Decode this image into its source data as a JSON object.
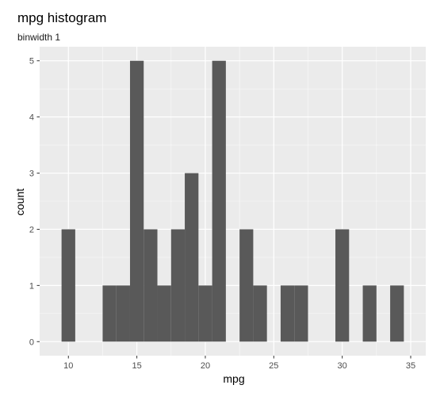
{
  "chart_data": {
    "type": "bar",
    "title": "mpg histogram",
    "subtitle": "binwidth 1",
    "xlabel": "mpg",
    "ylabel": "count",
    "binwidth": 1,
    "bins": [
      {
        "x": 10,
        "count": 2
      },
      {
        "x": 13,
        "count": 1
      },
      {
        "x": 14,
        "count": 1
      },
      {
        "x": 15,
        "count": 5
      },
      {
        "x": 16,
        "count": 2
      },
      {
        "x": 17,
        "count": 1
      },
      {
        "x": 18,
        "count": 2
      },
      {
        "x": 19,
        "count": 3
      },
      {
        "x": 20,
        "count": 1
      },
      {
        "x": 21,
        "count": 5
      },
      {
        "x": 23,
        "count": 2
      },
      {
        "x": 24,
        "count": 1
      },
      {
        "x": 26,
        "count": 1
      },
      {
        "x": 27,
        "count": 1
      },
      {
        "x": 30,
        "count": 2
      },
      {
        "x": 32,
        "count": 1
      },
      {
        "x": 34,
        "count": 1
      }
    ],
    "xlim": [
      7.9,
      36.1
    ],
    "ylim": [
      -0.25,
      5.25
    ],
    "x_ticks": [
      10,
      15,
      20,
      25,
      30,
      35
    ],
    "y_ticks": [
      0,
      1,
      2,
      3,
      4,
      5
    ],
    "grid": true,
    "colors": {
      "panel": "#ebebeb",
      "grid_major": "#ffffff",
      "bar": "#595959",
      "tick_text": "#4d4d4d"
    }
  }
}
